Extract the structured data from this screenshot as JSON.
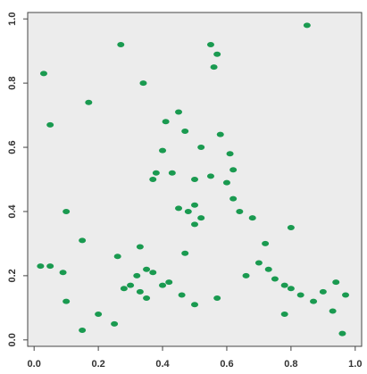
{
  "chart_data": {
    "type": "scatter",
    "color": "#1a9a50",
    "x": [
      0.03,
      0.05,
      0.17,
      0.27,
      0.34,
      0.41,
      0.45,
      0.47,
      0.52,
      0.56,
      0.57,
      0.55,
      0.58,
      0.61,
      0.62,
      0.4,
      0.38,
      0.37,
      0.43,
      0.5,
      0.55,
      0.6,
      0.62,
      0.5,
      0.48,
      0.52,
      0.45,
      0.5,
      0.64,
      0.68,
      0.1,
      0.15,
      0.05,
      0.02,
      0.09,
      0.32,
      0.35,
      0.37,
      0.3,
      0.28,
      0.33,
      0.4,
      0.42,
      0.35,
      0.46,
      0.5,
      0.57,
      0.66,
      0.7,
      0.73,
      0.75,
      0.78,
      0.8,
      0.83,
      0.87,
      0.9,
      0.94,
      0.97,
      0.93,
      0.96,
      0.78,
      0.2,
      0.1,
      0.25,
      0.85,
      0.8,
      0.72,
      0.33,
      0.26,
      0.47,
      0.15
    ],
    "y": [
      0.83,
      0.67,
      0.74,
      0.92,
      0.8,
      0.68,
      0.71,
      0.65,
      0.6,
      0.85,
      0.89,
      0.92,
      0.64,
      0.58,
      0.53,
      0.59,
      0.52,
      0.5,
      0.52,
      0.5,
      0.51,
      0.49,
      0.44,
      0.42,
      0.4,
      0.38,
      0.41,
      0.36,
      0.4,
      0.38,
      0.4,
      0.31,
      0.23,
      0.23,
      0.21,
      0.2,
      0.22,
      0.21,
      0.17,
      0.16,
      0.15,
      0.17,
      0.18,
      0.13,
      0.14,
      0.11,
      0.13,
      0.2,
      0.24,
      0.22,
      0.19,
      0.17,
      0.16,
      0.14,
      0.12,
      0.15,
      0.18,
      0.14,
      0.09,
      0.02,
      0.08,
      0.08,
      0.12,
      0.05,
      0.98,
      0.35,
      0.3,
      0.29,
      0.26,
      0.27,
      0.03
    ],
    "xlim": [
      -0.02,
      1.02
    ],
    "ylim": [
      -0.02,
      1.02
    ],
    "xticks": [
      {
        "value": 0,
        "label": "0.0"
      },
      0.2,
      0.4,
      0.6,
      0.8,
      {
        "value": 1,
        "label": "1.0"
      }
    ],
    "yticks": [
      {
        "value": 0,
        "label": "0.0"
      },
      0.2,
      0.4,
      0.6,
      0.8,
      {
        "value": 1,
        "label": "1.0"
      }
    ]
  }
}
